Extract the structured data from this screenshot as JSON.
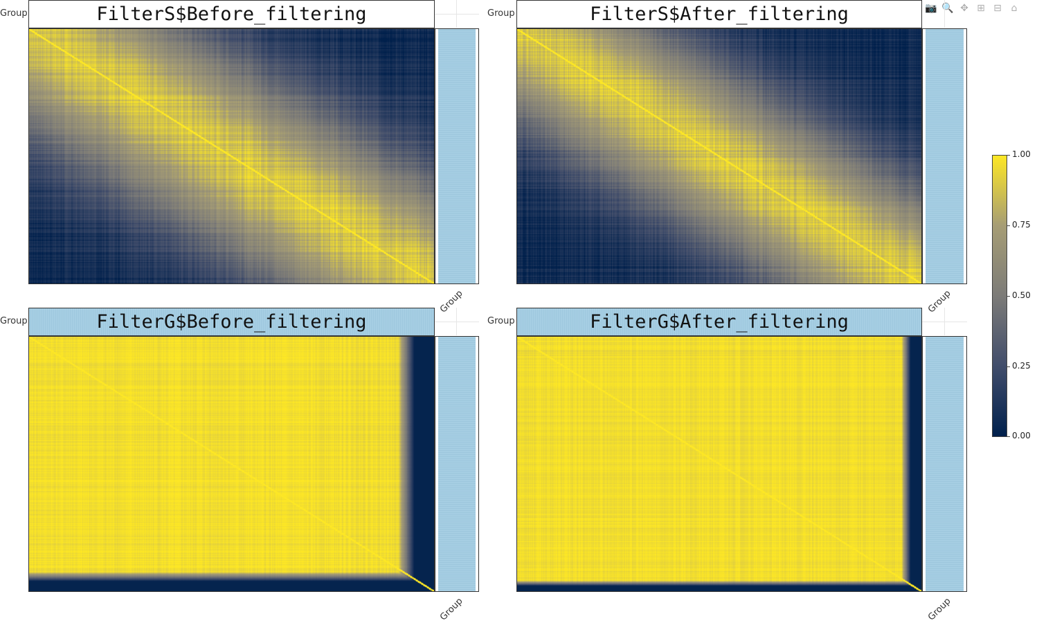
{
  "panels": [
    {
      "title": "FilterS$Before_filtering",
      "y_axis_label": "Group",
      "x_axis_label": "Group",
      "title_bar_group_colored": false,
      "heatmap": {
        "pattern": "similarity_diagonal",
        "low_corners": true
      }
    },
    {
      "title": "FilterS$After_filtering",
      "y_axis_label": "Group",
      "x_axis_label": "Group",
      "title_bar_group_colored": false,
      "heatmap": {
        "pattern": "similarity_diagonal",
        "low_corners": true
      }
    },
    {
      "title": "FilterG$Before_filtering",
      "y_axis_label": "Group",
      "x_axis_label": "Group",
      "title_bar_group_colored": true,
      "heatmap": {
        "pattern": "high_with_low_edges"
      }
    },
    {
      "title": "FilterG$After_filtering",
      "y_axis_label": "Group",
      "x_axis_label": "Group",
      "title_bar_group_colored": true,
      "heatmap": {
        "pattern": "high_with_low_edges"
      }
    }
  ],
  "colorbar": {
    "ticks": [
      "1.00",
      "0.75",
      "0.50",
      "0.25",
      "0.00"
    ],
    "colors": [
      "#fde725",
      "#a69d75",
      "#7c7b78",
      "#414d6b",
      "#00204c"
    ]
  },
  "group_color": "#a6cee3",
  "modebar": {
    "icons": [
      "camera-icon",
      "zoom-icon",
      "pan-icon",
      "zoom-in-icon",
      "zoom-out-icon",
      "home-icon"
    ]
  },
  "chart_data": [
    {
      "type": "heatmap",
      "title": "FilterS$Before_filtering",
      "xlabel": "Group",
      "ylabel": "Group",
      "zlim": [
        0,
        1
      ],
      "description_values": {
        "diagonal": 1.0,
        "center": 0.6,
        "corners": 0.05
      }
    },
    {
      "type": "heatmap",
      "title": "FilterS$After_filtering",
      "xlabel": "Group",
      "ylabel": "Group",
      "zlim": [
        0,
        1
      ],
      "description_values": {
        "diagonal": 1.0,
        "center": 0.55,
        "corners": 0.05
      }
    },
    {
      "type": "heatmap",
      "title": "FilterG$Before_filtering",
      "xlabel": "Group",
      "ylabel": "Group",
      "zlim": [
        0,
        1
      ],
      "description_values": {
        "diagonal": 1.0,
        "body": 0.95,
        "edges": 0.05
      }
    },
    {
      "type": "heatmap",
      "title": "FilterG$After_filtering",
      "xlabel": "Group",
      "ylabel": "Group",
      "zlim": [
        0,
        1
      ],
      "description_values": {
        "diagonal": 1.0,
        "body": 0.95,
        "edges": 0.1
      }
    }
  ]
}
